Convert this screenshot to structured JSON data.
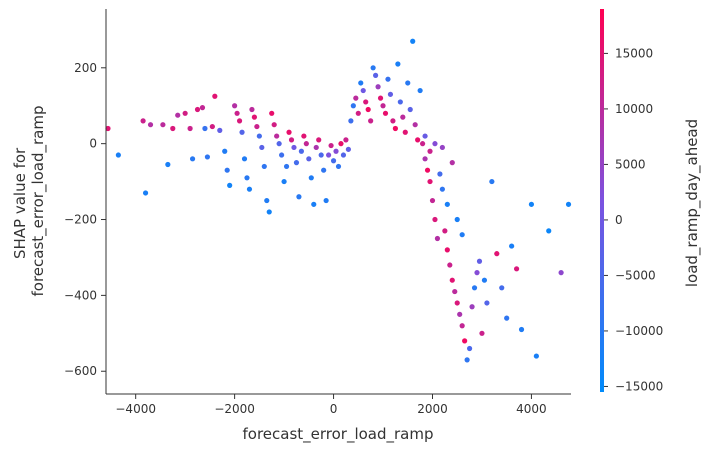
{
  "chart_data": {
    "type": "scatter",
    "xlabel": "forecast_error_load_ramp",
    "ylabel_lines": [
      "SHAP value for",
      "forecast_error_load_ramp"
    ],
    "xlim": [
      -4600,
      4800
    ],
    "ylim": [
      -660,
      355
    ],
    "xticks": [
      {
        "value": -4000,
        "label": "−4000"
      },
      {
        "value": -2000,
        "label": "−2000"
      },
      {
        "value": 0,
        "label": "0"
      },
      {
        "value": 2000,
        "label": "2000"
      },
      {
        "value": 4000,
        "label": "4000"
      }
    ],
    "yticks": [
      {
        "value": 200,
        "label": "200"
      },
      {
        "value": 0,
        "label": "0"
      },
      {
        "value": -200,
        "label": "−200"
      },
      {
        "value": -400,
        "label": "−400"
      },
      {
        "value": -600,
        "label": "−600"
      }
    ],
    "colorbar": {
      "label": "load_ramp_day_ahead",
      "range": [
        -15500,
        19000
      ],
      "ticks": [
        {
          "value": 15000,
          "label": "15000"
        },
        {
          "value": 10000,
          "label": "10000"
        },
        {
          "value": 5000,
          "label": "5000"
        },
        {
          "value": 0,
          "label": "0"
        },
        {
          "value": -5000,
          "label": "−5000"
        },
        {
          "value": -10000,
          "label": "−10000"
        },
        {
          "value": -15000,
          "label": "−15000"
        }
      ],
      "low_color": "#008bfb",
      "mid_color": "#7c52e0",
      "high_color": "#ff0052"
    },
    "grid": false,
    "points": [
      [
        -4560,
        40,
        15000
      ],
      [
        -4350,
        -30,
        -12000
      ],
      [
        -3800,
        -130,
        -12000
      ],
      [
        -3850,
        60,
        12000
      ],
      [
        -3700,
        50,
        9000
      ],
      [
        -3450,
        50,
        10000
      ],
      [
        -3350,
        -55,
        -12000
      ],
      [
        -3250,
        40,
        14000
      ],
      [
        -3150,
        75,
        9000
      ],
      [
        -3000,
        80,
        13000
      ],
      [
        -2900,
        40,
        12000
      ],
      [
        -2850,
        -40,
        -10000
      ],
      [
        -2750,
        90,
        14000
      ],
      [
        -2650,
        95,
        11000
      ],
      [
        -2600,
        40,
        -8000
      ],
      [
        -2550,
        -35,
        -9000
      ],
      [
        -2450,
        45,
        13000
      ],
      [
        -2400,
        125,
        15000
      ],
      [
        -2300,
        35,
        -2000
      ],
      [
        -2200,
        -20,
        -11000
      ],
      [
        -2150,
        -70,
        -9000
      ],
      [
        -2100,
        -110,
        -13000
      ],
      [
        -2000,
        100,
        9000
      ],
      [
        -1950,
        80,
        12000
      ],
      [
        -1900,
        60,
        14000
      ],
      [
        -1850,
        30,
        -4000
      ],
      [
        -1800,
        -40,
        -11000
      ],
      [
        -1750,
        -90,
        -10000
      ],
      [
        -1700,
        -120,
        -12000
      ],
      [
        -1650,
        90,
        10000
      ],
      [
        -1600,
        70,
        15000
      ],
      [
        -1550,
        45,
        12000
      ],
      [
        -1500,
        20,
        -6000
      ],
      [
        -1450,
        -10,
        -3000
      ],
      [
        -1400,
        -60,
        -9000
      ],
      [
        -1350,
        -150,
        -11000
      ],
      [
        -1300,
        -180,
        -13000
      ],
      [
        -1250,
        80,
        16000
      ],
      [
        -1200,
        50,
        13000
      ],
      [
        -1150,
        20,
        10000
      ],
      [
        -1100,
        0,
        -4000
      ],
      [
        -1050,
        -30,
        -7000
      ],
      [
        -1000,
        -100,
        -12000
      ],
      [
        -950,
        -60,
        -9000
      ],
      [
        -900,
        30,
        16000
      ],
      [
        -850,
        10,
        13000
      ],
      [
        -800,
        -10,
        0
      ],
      [
        -750,
        -50,
        -6000
      ],
      [
        -700,
        -140,
        -10000
      ],
      [
        -650,
        -20,
        -5000
      ],
      [
        -600,
        20,
        15000
      ],
      [
        -550,
        0,
        11000
      ],
      [
        -500,
        -40,
        -3000
      ],
      [
        -450,
        -90,
        -11000
      ],
      [
        -400,
        -160,
        -12000
      ],
      [
        -350,
        -10,
        8000
      ],
      [
        -300,
        10,
        14000
      ],
      [
        -250,
        -30,
        -5000
      ],
      [
        -200,
        -70,
        -9000
      ],
      [
        -150,
        -150,
        -11000
      ],
      [
        -100,
        -30,
        2000
      ],
      [
        -50,
        -5,
        12000
      ],
      [
        0,
        -45,
        -6000
      ],
      [
        50,
        -20,
        3000
      ],
      [
        100,
        -60,
        -9000
      ],
      [
        150,
        0,
        16000
      ],
      [
        200,
        -30,
        -4000
      ],
      [
        250,
        10,
        12000
      ],
      [
        300,
        -15,
        -2000
      ],
      [
        350,
        60,
        -7000
      ],
      [
        400,
        100,
        -9000
      ],
      [
        450,
        120,
        10000
      ],
      [
        500,
        80,
        13000
      ],
      [
        550,
        160,
        -11000
      ],
      [
        600,
        140,
        0
      ],
      [
        650,
        110,
        14000
      ],
      [
        700,
        90,
        17000
      ],
      [
        750,
        60,
        12000
      ],
      [
        800,
        200,
        -10000
      ],
      [
        850,
        180,
        -3000
      ],
      [
        900,
        150,
        6000
      ],
      [
        950,
        120,
        15000
      ],
      [
        1000,
        100,
        11000
      ],
      [
        1050,
        80,
        16000
      ],
      [
        1100,
        170,
        -8000
      ],
      [
        1150,
        130,
        -2000
      ],
      [
        1200,
        60,
        13000
      ],
      [
        1250,
        40,
        17000
      ],
      [
        1300,
        210,
        -12000
      ],
      [
        1350,
        110,
        -5000
      ],
      [
        1400,
        70,
        10000
      ],
      [
        1450,
        30,
        15000
      ],
      [
        1500,
        160,
        -10000
      ],
      [
        1550,
        90,
        -3000
      ],
      [
        1600,
        270,
        -13000
      ],
      [
        1650,
        50,
        9000
      ],
      [
        1700,
        10,
        16000
      ],
      [
        1750,
        140,
        -11000
      ],
      [
        1800,
        0,
        12000
      ],
      [
        1850,
        -40,
        8000
      ],
      [
        1900,
        -70,
        17000
      ],
      [
        1950,
        -100,
        15000
      ],
      [
        2000,
        -150,
        11000
      ],
      [
        2050,
        -200,
        14000
      ],
      [
        2100,
        -250,
        9000
      ],
      [
        2150,
        -80,
        -6000
      ],
      [
        2200,
        -120,
        -9000
      ],
      [
        2250,
        -230,
        13000
      ],
      [
        2300,
        -280,
        16000
      ],
      [
        2350,
        -320,
        12000
      ],
      [
        2400,
        -360,
        15000
      ],
      [
        2450,
        -390,
        10000
      ],
      [
        2500,
        -420,
        14000
      ],
      [
        2550,
        -450,
        8000
      ],
      [
        2600,
        -480,
        11000
      ],
      [
        2650,
        -520,
        17000
      ],
      [
        2700,
        -570,
        -9000
      ],
      [
        2750,
        -540,
        -5000
      ],
      [
        2800,
        -430,
        6000
      ],
      [
        2850,
        -380,
        -10000
      ],
      [
        2900,
        -340,
        3000
      ],
      [
        2950,
        -310,
        -2000
      ],
      [
        3000,
        -500,
        12000
      ],
      [
        3050,
        -360,
        -11000
      ],
      [
        3100,
        -420,
        -4000
      ],
      [
        3200,
        -100,
        -10000
      ],
      [
        3300,
        -290,
        15000
      ],
      [
        3400,
        -380,
        -6000
      ],
      [
        3500,
        -460,
        -9000
      ],
      [
        3600,
        -270,
        -12000
      ],
      [
        3700,
        -330,
        14000
      ],
      [
        3800,
        -490,
        -11000
      ],
      [
        4000,
        -160,
        -13000
      ],
      [
        4100,
        -560,
        -12000
      ],
      [
        4350,
        -230,
        -14000
      ],
      [
        4600,
        -340,
        4000
      ],
      [
        4750,
        -160,
        -13000
      ],
      [
        2400,
        -50,
        9000
      ],
      [
        2200,
        -10,
        5000
      ],
      [
        2050,
        0,
        3000
      ],
      [
        1950,
        -20,
        12000
      ],
      [
        1850,
        20,
        -1000
      ],
      [
        2300,
        -160,
        -12000
      ],
      [
        2500,
        -200,
        -12000
      ],
      [
        2600,
        -240,
        -11000
      ]
    ]
  }
}
